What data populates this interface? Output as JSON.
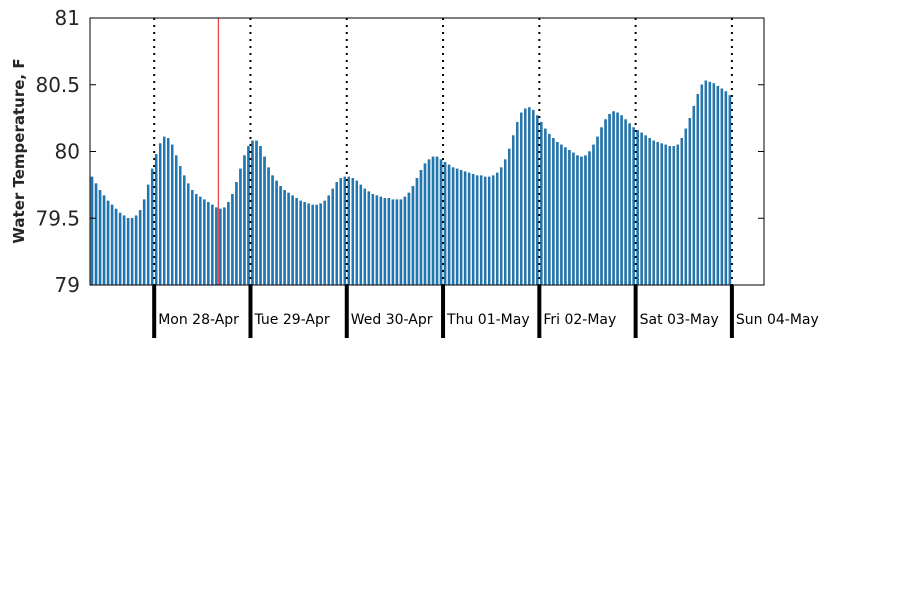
{
  "chart_data": {
    "type": "bar",
    "ylabel": "Water Temperature, F",
    "ylim": [
      79,
      81
    ],
    "y_ticks": [
      "79",
      "79.5",
      "80",
      "80.5",
      "81"
    ],
    "x_start": "2014-04-27 08:00",
    "hours_per_bar": 1,
    "x_range_hours": [
      0,
      168
    ],
    "day_labels": [
      "Mon 28-Apr",
      "Tue 29-Apr",
      "Wed 30-Apr",
      "Thu 01-May",
      "Fri 02-May",
      "Sat 03-May",
      "Sun 04-May"
    ],
    "midnight_hours": [
      16,
      40,
      64,
      88,
      112,
      136,
      160
    ],
    "marker_hour": 32,
    "grid": "dotted vertical lines at midnight",
    "values": [
      79.81,
      79.76,
      79.71,
      79.67,
      79.63,
      79.6,
      79.57,
      79.54,
      79.52,
      79.5,
      79.5,
      79.52,
      79.56,
      79.64,
      79.75,
      79.87,
      79.98,
      80.06,
      80.11,
      80.1,
      80.05,
      79.97,
      79.89,
      79.82,
      79.76,
      79.71,
      79.68,
      79.66,
      79.64,
      79.62,
      79.6,
      79.58,
      79.57,
      79.58,
      79.62,
      79.68,
      79.77,
      79.87,
      79.97,
      80.04,
      80.08,
      80.08,
      80.04,
      79.96,
      79.88,
      79.82,
      79.78,
      79.74,
      79.71,
      79.69,
      79.67,
      79.65,
      79.63,
      79.62,
      79.61,
      79.6,
      79.6,
      79.61,
      79.63,
      79.67,
      79.72,
      79.77,
      79.8,
      79.81,
      79.81,
      79.8,
      79.78,
      79.75,
      79.72,
      79.7,
      79.68,
      79.67,
      79.66,
      79.65,
      79.65,
      79.64,
      79.64,
      79.64,
      79.66,
      79.69,
      79.74,
      79.8,
      79.86,
      79.91,
      79.94,
      79.96,
      79.96,
      79.94,
      79.92,
      79.9,
      79.88,
      79.87,
      79.86,
      79.85,
      79.84,
      79.83,
      79.82,
      79.82,
      79.81,
      79.81,
      79.82,
      79.84,
      79.88,
      79.94,
      80.02,
      80.12,
      80.22,
      80.29,
      80.32,
      80.33,
      80.31,
      80.27,
      80.22,
      80.17,
      80.13,
      80.1,
      80.07,
      80.05,
      80.03,
      80.01,
      79.99,
      79.97,
      79.96,
      79.97,
      80.0,
      80.05,
      80.11,
      80.18,
      80.24,
      80.28,
      80.3,
      80.29,
      80.27,
      80.24,
      80.21,
      80.18,
      80.16,
      80.14,
      80.12,
      80.1,
      80.08,
      80.07,
      80.06,
      80.05,
      80.04,
      80.04,
      80.05,
      80.1,
      80.17,
      80.25,
      80.34,
      80.43,
      80.5,
      80.53,
      80.52,
      80.51,
      80.49,
      80.47,
      80.45,
      80.42
    ],
    "colors": {
      "bar": "#1f78b4",
      "bar_edge": "#0e5a8c",
      "marker": "#e8474e",
      "axis": "#000000"
    }
  }
}
